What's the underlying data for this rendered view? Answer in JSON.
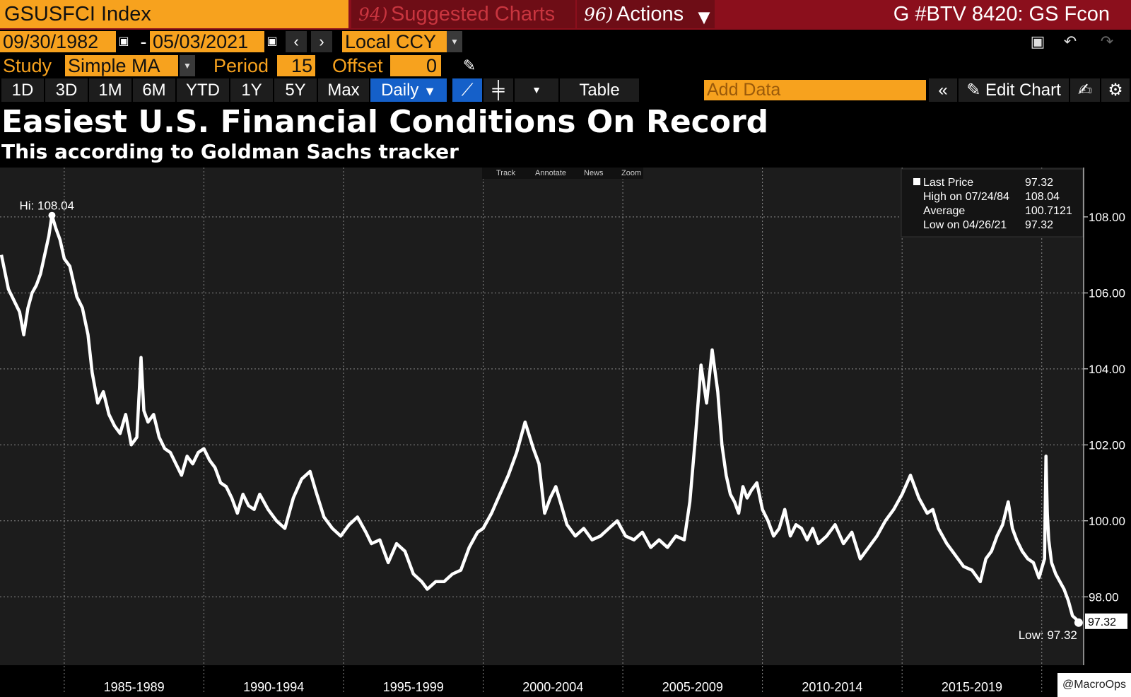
{
  "header": {
    "ticker": "GSUSFCI Index",
    "suggested_num": "94)",
    "suggested_label": "Suggested Charts",
    "actions_num": "96)",
    "actions_label": "Actions",
    "function_title": "G #BTV 8420: GS Fcon"
  },
  "range": {
    "start_date": "09/30/1982",
    "separator": "-",
    "end_date": "05/03/2021",
    "currency": "Local CCY"
  },
  "study": {
    "label": "Study",
    "value": "Simple MA",
    "period_label": "Period",
    "period_value": "15",
    "offset_label": "Offset",
    "offset_value": "0"
  },
  "toolbar": {
    "ranges": [
      "1D",
      "3D",
      "1M",
      "6M",
      "YTD",
      "1Y",
      "5Y",
      "Max"
    ],
    "frequency": "Daily",
    "table_label": "Table",
    "add_data_placeholder": "Add Data",
    "edit_chart_label": "Edit Chart"
  },
  "headline": {
    "title": "Easiest U.S. Financial Conditions On Record",
    "subtitle": "This according to Goldman Sachs tracker"
  },
  "chart_tools": [
    "Track",
    "Annotate",
    "News",
    "Zoom"
  ],
  "legend": [
    {
      "label": "Last Price",
      "value": "97.32"
    },
    {
      "label": "High on 07/24/84",
      "value": "108.04"
    },
    {
      "label": "Average",
      "value": "100.7121"
    },
    {
      "label": "Low on 04/26/21",
      "value": "97.32"
    }
  ],
  "credit": "@MacroOps",
  "colors": {
    "background": "#000000",
    "plot_background": "#1c1c1c",
    "line": "#ffffff",
    "accent_orange": "#f7a21e",
    "header_red": "#8b0f1c",
    "active_blue": "#1560c9"
  },
  "chart_data": {
    "type": "line",
    "title": "Easiest U.S. Financial Conditions On Record",
    "subtitle": "This according to Goldman Sachs tracker",
    "xlabel": "",
    "ylabel": "",
    "x_range": [
      1982.7,
      2021.5
    ],
    "ylim": [
      96.2,
      109.3
    ],
    "y_ticks": [
      98,
      100,
      102,
      104,
      106,
      108
    ],
    "y_tick_labels": [
      "98.00",
      "100.00",
      "102.00",
      "104.00",
      "106.00",
      "108.00"
    ],
    "x_period_labels": [
      {
        "label": "1985-1989",
        "start": 1985,
        "end": 1990
      },
      {
        "label": "1990-1994",
        "start": 1990,
        "end": 1995
      },
      {
        "label": "1995-1999",
        "start": 1995,
        "end": 2000
      },
      {
        "label": "2000-2004",
        "start": 2000,
        "end": 2005
      },
      {
        "label": "2005-2009",
        "start": 2005,
        "end": 2010
      },
      {
        "label": "2010-2014",
        "start": 2010,
        "end": 2015
      },
      {
        "label": "2015-2019",
        "start": 2015,
        "end": 2020
      }
    ],
    "grid": true,
    "legend_position": "top-right",
    "annotations": [
      {
        "label": "Hi: 108.04",
        "x": 1984.56,
        "y": 108.04
      },
      {
        "label": "Low: 97.32",
        "x": 2021.32,
        "y": 97.32
      }
    ],
    "last_value_label": "97.32",
    "series": [
      {
        "x": [
          1982.75,
          1983.0,
          1983.2,
          1983.4,
          1983.55,
          1983.7,
          1983.85,
          1984.0,
          1984.15,
          1984.3,
          1984.45,
          1984.56,
          1984.7,
          1984.85,
          1985.0,
          1985.2,
          1985.45,
          1985.65,
          1985.85,
          1986.0,
          1986.2,
          1986.4,
          1986.6,
          1986.8,
          1987.0,
          1987.2,
          1987.4,
          1987.6,
          1987.75,
          1987.85,
          1988.0,
          1988.2,
          1988.4,
          1988.6,
          1988.8,
          1989.0,
          1989.2,
          1989.4,
          1989.6,
          1989.8,
          1990.0,
          1990.2,
          1990.4,
          1990.6,
          1990.8,
          1991.0,
          1991.2,
          1991.4,
          1991.6,
          1991.8,
          1992.0,
          1992.3,
          1992.6,
          1992.9,
          1993.2,
          1993.5,
          1993.8,
          1994.0,
          1994.3,
          1994.6,
          1994.9,
          1995.2,
          1995.5,
          1995.8,
          1996.0,
          1996.3,
          1996.6,
          1996.9,
          1997.2,
          1997.5,
          1997.8,
          1998.0,
          1998.3,
          1998.6,
          1998.9,
          1999.2,
          1999.5,
          1999.8,
          2000.0,
          2000.3,
          2000.6,
          2000.9,
          2001.2,
          2001.5,
          2001.8,
          2002.0,
          2002.2,
          2002.4,
          2002.6,
          2002.8,
          2003.0,
          2003.3,
          2003.6,
          2003.9,
          2004.2,
          2004.5,
          2004.8,
          2005.1,
          2005.4,
          2005.7,
          2006.0,
          2006.3,
          2006.6,
          2006.9,
          2007.2,
          2007.4,
          2007.6,
          2007.8,
          2008.0,
          2008.2,
          2008.4,
          2008.55,
          2008.7,
          2008.85,
          2009.0,
          2009.15,
          2009.3,
          2009.45,
          2009.6,
          2009.8,
          2010.0,
          2010.2,
          2010.4,
          2010.6,
          2010.8,
          2011.0,
          2011.2,
          2011.4,
          2011.6,
          2011.8,
          2012.0,
          2012.3,
          2012.6,
          2012.9,
          2013.2,
          2013.5,
          2013.8,
          2014.1,
          2014.4,
          2014.7,
          2015.0,
          2015.3,
          2015.6,
          2015.9,
          2016.1,
          2016.3,
          2016.6,
          2016.9,
          2017.2,
          2017.5,
          2017.8,
          2018.0,
          2018.2,
          2018.4,
          2018.6,
          2018.8,
          2018.95,
          2019.1,
          2019.3,
          2019.5,
          2019.7,
          2019.9,
          2020.1,
          2020.15,
          2020.2,
          2020.25,
          2020.35,
          2020.5,
          2020.65,
          2020.8,
          2020.95,
          2021.1,
          2021.25,
          2021.32
        ],
        "values": [
          107.0,
          106.1,
          105.8,
          105.5,
          104.9,
          105.6,
          106.0,
          106.2,
          106.5,
          107.0,
          107.5,
          108.04,
          107.7,
          107.4,
          106.9,
          106.7,
          105.9,
          105.6,
          104.9,
          103.9,
          103.1,
          103.4,
          102.8,
          102.5,
          102.3,
          102.8,
          102.0,
          102.2,
          104.3,
          102.9,
          102.6,
          102.8,
          102.2,
          101.9,
          101.8,
          101.5,
          101.2,
          101.7,
          101.5,
          101.8,
          101.9,
          101.6,
          101.4,
          101.0,
          100.9,
          100.6,
          100.2,
          100.7,
          100.4,
          100.3,
          100.7,
          100.3,
          100.0,
          99.8,
          100.6,
          101.1,
          101.3,
          100.8,
          100.1,
          99.8,
          99.6,
          99.9,
          100.1,
          99.7,
          99.4,
          99.5,
          98.9,
          99.4,
          99.2,
          98.6,
          98.4,
          98.2,
          98.4,
          98.4,
          98.6,
          98.7,
          99.3,
          99.7,
          99.8,
          100.2,
          100.7,
          101.2,
          101.8,
          102.6,
          101.9,
          101.5,
          100.2,
          100.6,
          100.9,
          100.4,
          99.9,
          99.6,
          99.8,
          99.5,
          99.6,
          99.8,
          100.0,
          99.6,
          99.5,
          99.7,
          99.3,
          99.5,
          99.3,
          99.6,
          99.5,
          100.5,
          102.2,
          104.1,
          103.1,
          104.5,
          103.4,
          102.0,
          101.2,
          100.7,
          100.5,
          100.2,
          100.9,
          100.6,
          100.8,
          101.0,
          100.3,
          100.0,
          99.6,
          99.8,
          100.3,
          99.6,
          99.9,
          99.8,
          99.5,
          99.8,
          99.4,
          99.6,
          99.9,
          99.4,
          99.7,
          99.0,
          99.3,
          99.6,
          100.0,
          100.3,
          100.7,
          101.2,
          100.6,
          100.2,
          100.3,
          99.8,
          99.4,
          99.1,
          98.8,
          98.7,
          98.4,
          99.0,
          99.2,
          99.6,
          99.9,
          100.5,
          99.8,
          99.5,
          99.2,
          99.0,
          98.9,
          98.5,
          99.0,
          101.7,
          100.2,
          99.5,
          98.9,
          98.6,
          98.4,
          98.2,
          97.9,
          97.5,
          97.4,
          97.32
        ]
      }
    ]
  }
}
